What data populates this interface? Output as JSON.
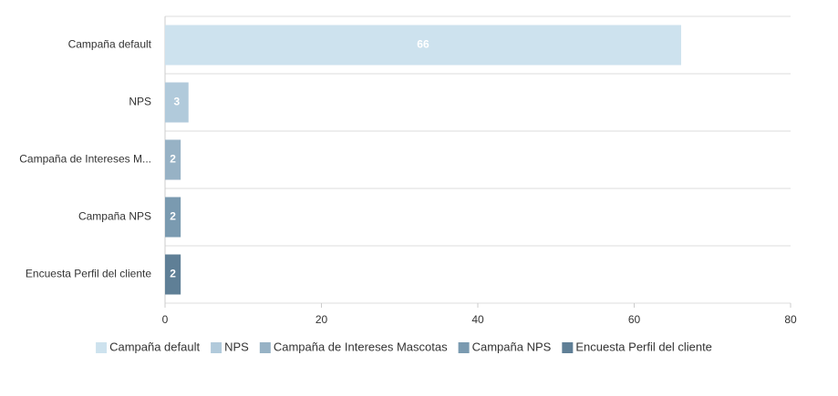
{
  "chart_data": {
    "type": "hbar",
    "categories": [
      "Campaña default",
      "NPS",
      "Campaña de Intereses M...",
      "Campaña NPS",
      "Encuesta Perfil del cliente"
    ],
    "values": [
      66,
      3,
      2,
      2,
      2
    ],
    "colors": [
      "#cde2ee",
      "#b1cadb",
      "#97b2c5",
      "#7a9ab0",
      "#5f7f96"
    ],
    "legend": [
      "Campaña default",
      "NPS",
      "Campaña de Intereses Mascotas",
      "Campaña NPS",
      "Encuesta Perfil del cliente"
    ],
    "xlim": [
      0,
      80
    ],
    "xticks": [
      0,
      20,
      40,
      60,
      80
    ]
  }
}
